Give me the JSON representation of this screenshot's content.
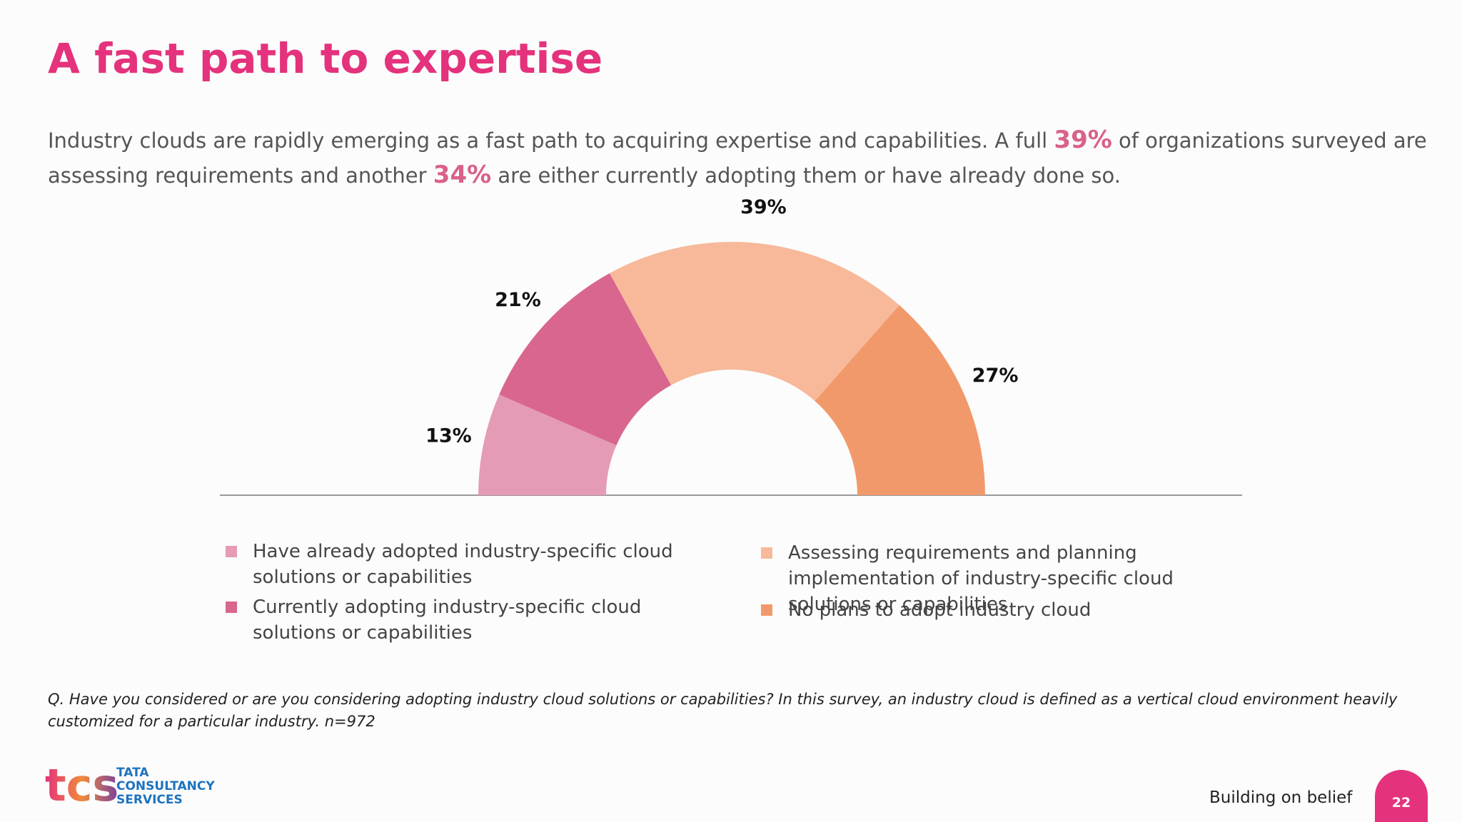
{
  "chart_data": {
    "type": "donut",
    "title": "A fast path to expertise",
    "categories": [
      "Have already adopted industry-specific cloud solutions or capabilities",
      "Currently adopting industry-specific cloud solutions or capabilities",
      "Assessing requirements and planning implementation of industry-specific cloud solutions or capabilities",
      "No plans to adopt industry cloud"
    ],
    "values": [
      13,
      21,
      39,
      27
    ],
    "value_labels": [
      "13%",
      "21%",
      "39%",
      "27%"
    ],
    "colors": [
      "#e59bb6",
      "#d9668f",
      "#f7b99a",
      "#f2996b"
    ]
  },
  "intro": {
    "lines": [
      [
        "Industry clouds are rapidly emerging as a fast path to acquiring expertise and capabilities. A full ",
        "39%",
        " of organizations surveyed are"
      ],
      [
        "assessing requirements and another ",
        "34%",
        " are either currently adopting them or have already done so."
      ]
    ]
  },
  "footnote": {
    "lines": [
      "Q. Have you considered or are you considering adopting industry cloud solutions or capabilities? In this survey, an industry cloud is defined as a vertical cloud environment heavily",
      "customized for a particular industry. n=972"
    ]
  },
  "logo": {
    "mark": "tcs",
    "lines": [
      "TATA",
      "CONSULTANCY",
      "SERVICES"
    ]
  },
  "tagline": "Building on belief",
  "page_number": "22"
}
